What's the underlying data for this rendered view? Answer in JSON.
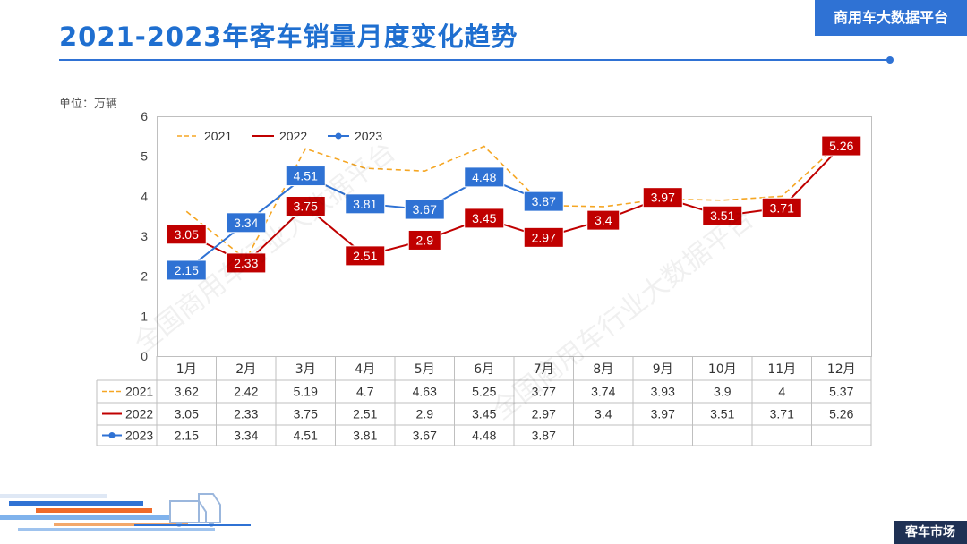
{
  "header": {
    "title": "2021-2023年客车销量月度变化趋势",
    "brand": "商用车大数据平台",
    "unit_label": "单位：万辆",
    "footer_tag": "客车市场"
  },
  "watermark": "全国商用车行业大数据平台",
  "colors": {
    "accent": "#2f72d4",
    "series_2021": "#f5a623",
    "series_2022": "#c00000",
    "series_2023": "#2f72d4",
    "footer": "#1f3154"
  },
  "chart_data": {
    "type": "line",
    "title": "",
    "xlabel": "",
    "ylabel": "",
    "ylim": [
      0,
      6
    ],
    "yticks": [
      0,
      1,
      2,
      3,
      4,
      5,
      6
    ],
    "grid": false,
    "legend_position": "top-left",
    "categories": [
      "1月",
      "2月",
      "3月",
      "4月",
      "5月",
      "6月",
      "7月",
      "8月",
      "9月",
      "10月",
      "11月",
      "12月"
    ],
    "series": [
      {
        "name": "2021",
        "style": "dashed",
        "labels": false,
        "values": [
          3.62,
          2.42,
          5.19,
          4.7,
          4.63,
          5.25,
          3.77,
          3.74,
          3.93,
          3.9,
          4,
          5.37
        ]
      },
      {
        "name": "2022",
        "style": "solid",
        "labels": true,
        "values": [
          3.05,
          2.33,
          3.75,
          2.51,
          2.9,
          3.45,
          2.97,
          3.4,
          3.97,
          3.51,
          3.71,
          5.26
        ]
      },
      {
        "name": "2023",
        "style": "marker",
        "labels": true,
        "values": [
          2.15,
          3.34,
          4.51,
          3.81,
          3.67,
          4.48,
          3.87,
          null,
          null,
          null,
          null,
          null
        ]
      }
    ],
    "table_values": [
      [
        "3.62",
        "2.42",
        "5.19",
        "4.7",
        "4.63",
        "5.25",
        "3.77",
        "3.74",
        "3.93",
        "3.9",
        "4",
        "5.37"
      ],
      [
        "3.05",
        "2.33",
        "3.75",
        "2.51",
        "2.9",
        "3.45",
        "2.97",
        "3.4",
        "3.97",
        "3.51",
        "3.71",
        "5.26"
      ],
      [
        "2.15",
        "3.34",
        "4.51",
        "3.81",
        "3.67",
        "4.48",
        "3.87",
        "",
        "",
        "",
        "",
        ""
      ]
    ]
  }
}
